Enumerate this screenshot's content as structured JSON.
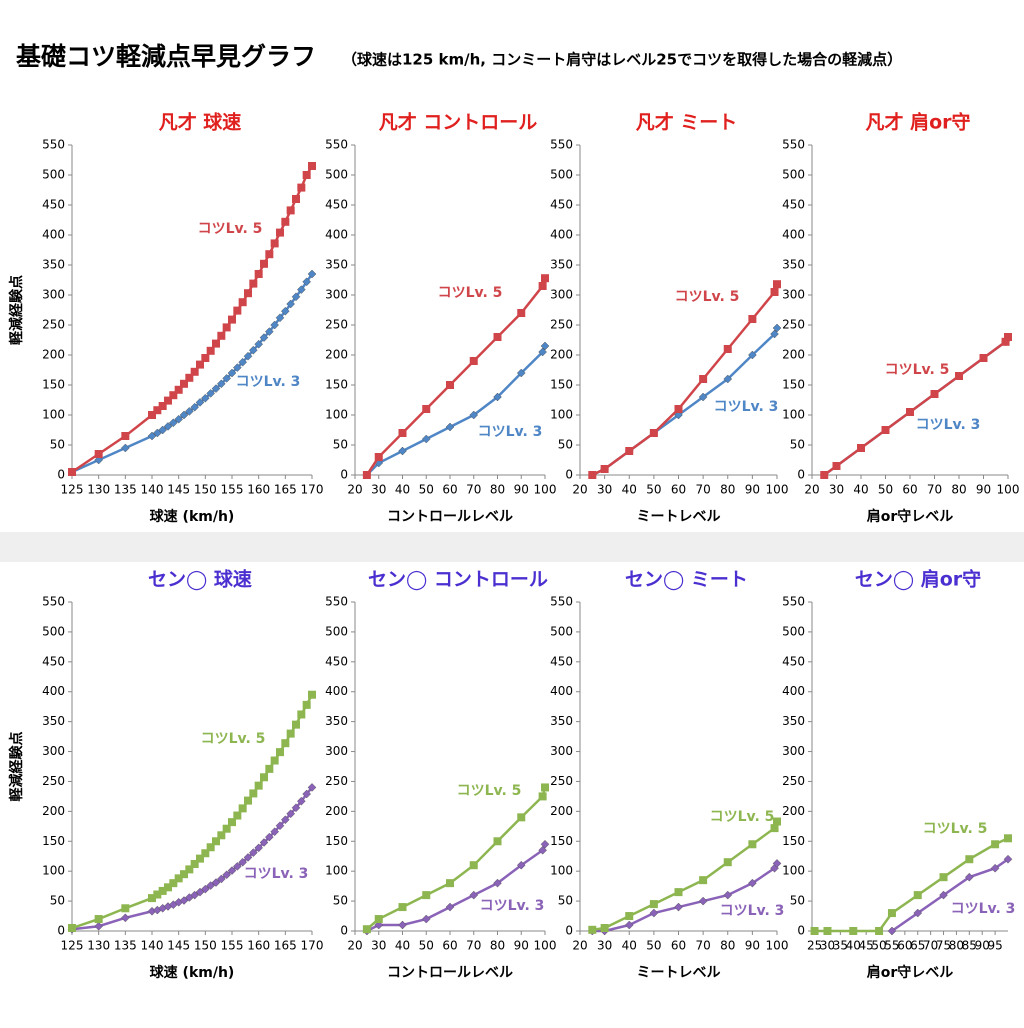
{
  "title": "基礎コツ軽減点早見グラフ",
  "subtitle": "（球速は125 km/h, コンミート肩守はレベル25でコツを取得した場合の軽減点）",
  "chart_data": [
    {
      "type": "line",
      "title": "凡才  球速",
      "title_color": "#e0201e",
      "x_label": "球速 (km/h)",
      "y_label": "軽減経験点",
      "x": [
        125,
        130,
        135,
        140,
        141,
        142,
        143,
        144,
        145,
        146,
        147,
        148,
        149,
        150,
        151,
        152,
        153,
        154,
        155,
        156,
        157,
        158,
        159,
        160,
        161,
        162,
        163,
        164,
        165,
        166,
        167,
        168,
        169,
        170
      ],
      "xlim": [
        125,
        170
      ],
      "xticks": [
        125,
        130,
        135,
        140,
        145,
        150,
        155,
        160,
        165,
        170
      ],
      "ylim": [
        0,
        550
      ],
      "yticks": [
        0,
        50,
        100,
        150,
        200,
        250,
        300,
        350,
        400,
        450,
        500,
        550
      ],
      "series": [
        {
          "name": "コツLv. 5",
          "color": "#d0454a",
          "marker": "square",
          "values": [
            5,
            35,
            65,
            100,
            108,
            115,
            124,
            133,
            142,
            152,
            162,
            172,
            184,
            195,
            207,
            219,
            232,
            246,
            259,
            274,
            288,
            303,
            319,
            335,
            352,
            368,
            386,
            404,
            422,
            441,
            460,
            479,
            500,
            515
          ]
        },
        {
          "name": "コツLv. 3",
          "color": "#4f86c6",
          "marker": "diamond",
          "values": [
            5,
            25,
            45,
            65,
            70,
            75,
            81,
            87,
            93,
            100,
            106,
            113,
            121,
            128,
            136,
            144,
            152,
            161,
            170,
            179,
            188,
            198,
            208,
            218,
            229,
            239,
            250,
            262,
            273,
            285,
            297,
            309,
            322,
            335
          ]
        }
      ]
    },
    {
      "type": "line",
      "title": "凡才  コントロール",
      "title_color": "#e0201e",
      "x_label": "コントロールレベル",
      "x": [
        25,
        30,
        40,
        50,
        60,
        70,
        80,
        90,
        99,
        100
      ],
      "xlim": [
        20,
        100
      ],
      "xticks": [
        20,
        30,
        40,
        50,
        60,
        70,
        80,
        90,
        100
      ],
      "ylim": [
        0,
        550
      ],
      "yticks": [
        0,
        50,
        100,
        150,
        200,
        250,
        300,
        350,
        400,
        450,
        500,
        550
      ],
      "series": [
        {
          "name": "コツLv. 5",
          "color": "#d0454a",
          "marker": "square",
          "values": [
            0,
            30,
            70,
            110,
            150,
            190,
            230,
            270,
            315,
            328
          ]
        },
        {
          "name": "コツLv. 3",
          "color": "#4f86c6",
          "marker": "diamond",
          "values": [
            0,
            20,
            40,
            60,
            80,
            100,
            130,
            170,
            205,
            215
          ]
        }
      ]
    },
    {
      "type": "line",
      "title": "凡才  ミート",
      "title_color": "#e0201e",
      "x_label": "ミートレベル",
      "x": [
        25,
        30,
        40,
        50,
        60,
        70,
        80,
        90,
        99,
        100
      ],
      "xlim": [
        20,
        100
      ],
      "xticks": [
        20,
        30,
        40,
        50,
        60,
        70,
        80,
        90,
        100
      ],
      "ylim": [
        0,
        550
      ],
      "yticks": [
        0,
        50,
        100,
        150,
        200,
        250,
        300,
        350,
        400,
        450,
        500,
        550
      ],
      "series": [
        {
          "name": "コツLv. 5",
          "color": "#d0454a",
          "marker": "square",
          "values": [
            0,
            10,
            40,
            70,
            110,
            160,
            210,
            260,
            305,
            318
          ]
        },
        {
          "name": "コツLv. 3",
          "color": "#4f86c6",
          "marker": "diamond",
          "values": [
            0,
            10,
            40,
            70,
            100,
            130,
            160,
            200,
            235,
            245
          ]
        }
      ]
    },
    {
      "type": "line",
      "title": "凡才  肩or守",
      "title_color": "#e0201e",
      "x_label": "肩or守レベル",
      "x": [
        25,
        30,
        40,
        50,
        60,
        70,
        80,
        90,
        99,
        100
      ],
      "xlim": [
        20,
        100
      ],
      "xticks": [
        20,
        30,
        40,
        50,
        60,
        70,
        80,
        90,
        100
      ],
      "ylim": [
        0,
        550
      ],
      "yticks": [
        0,
        50,
        100,
        150,
        200,
        250,
        300,
        350,
        400,
        450,
        500,
        550
      ],
      "series": [
        {
          "name": "コツLv. 5",
          "color": "#d0454a",
          "marker": "square",
          "values": [
            0,
            15,
            45,
            75,
            105,
            135,
            165,
            195,
            222,
            230
          ]
        },
        {
          "name": "コツLv. 3",
          "color": "#4f86c6",
          "marker": "diamond",
          "values": [
            0,
            15,
            45,
            75,
            105,
            135,
            165,
            195,
            222,
            230
          ]
        }
      ]
    },
    {
      "type": "line",
      "title": "セン◯ 球速",
      "title_color": "#4b2fd0",
      "x_label": "球速 (km/h)",
      "y_label": "軽減経験点",
      "x": [
        125,
        130,
        135,
        140,
        141,
        142,
        143,
        144,
        145,
        146,
        147,
        148,
        149,
        150,
        151,
        152,
        153,
        154,
        155,
        156,
        157,
        158,
        159,
        160,
        161,
        162,
        163,
        164,
        165,
        166,
        167,
        168,
        169,
        170
      ],
      "xlim": [
        125,
        170
      ],
      "xticks": [
        125,
        130,
        135,
        140,
        145,
        150,
        155,
        160,
        165,
        170
      ],
      "ylim": [
        0,
        550
      ],
      "yticks": [
        0,
        50,
        100,
        150,
        200,
        250,
        300,
        350,
        400,
        450,
        500,
        550
      ],
      "series": [
        {
          "name": "コツLv. 5",
          "color": "#8db650",
          "marker": "square",
          "values": [
            5,
            20,
            38,
            55,
            61,
            67,
            73,
            80,
            88,
            95,
            103,
            112,
            121,
            130,
            140,
            150,
            160,
            171,
            182,
            193,
            205,
            218,
            230,
            243,
            257,
            271,
            285,
            299,
            314,
            330,
            345,
            362,
            378,
            395
          ]
        },
        {
          "name": "コツLv. 3",
          "color": "#8a62b8",
          "marker": "diamond",
          "values": [
            3,
            8,
            22,
            33,
            35,
            38,
            41,
            44,
            48,
            51,
            56,
            60,
            65,
            70,
            76,
            81,
            87,
            94,
            101,
            108,
            115,
            123,
            131,
            139,
            148,
            157,
            166,
            176,
            186,
            196,
            206,
            217,
            229,
            240
          ]
        }
      ]
    },
    {
      "type": "line",
      "title": "セン◯ コントロール",
      "title_color": "#4b2fd0",
      "x_label": "コントロールレベル",
      "x": [
        25,
        30,
        40,
        50,
        60,
        70,
        80,
        90,
        99,
        100
      ],
      "xlim": [
        20,
        100
      ],
      "xticks": [
        20,
        30,
        40,
        50,
        60,
        70,
        80,
        90,
        100
      ],
      "ylim": [
        0,
        550
      ],
      "yticks": [
        0,
        50,
        100,
        150,
        200,
        250,
        300,
        350,
        400,
        450,
        500,
        550
      ],
      "series": [
        {
          "name": "コツLv. 5",
          "color": "#8db650",
          "marker": "square",
          "values": [
            3,
            20,
            40,
            60,
            80,
            110,
            150,
            190,
            225,
            240
          ]
        },
        {
          "name": "コツLv. 3",
          "color": "#8a62b8",
          "marker": "diamond",
          "values": [
            0,
            10,
            10,
            20,
            40,
            60,
            80,
            110,
            135,
            145
          ]
        }
      ]
    },
    {
      "type": "line",
      "title": "セン◯ ミート",
      "title_color": "#4b2fd0",
      "x_label": "ミートレベル",
      "x": [
        25,
        30,
        40,
        50,
        60,
        70,
        80,
        90,
        99,
        100
      ],
      "xlim": [
        20,
        100
      ],
      "xticks": [
        20,
        30,
        40,
        50,
        60,
        70,
        80,
        90,
        100
      ],
      "ylim": [
        0,
        550
      ],
      "yticks": [
        0,
        50,
        100,
        150,
        200,
        250,
        300,
        350,
        400,
        450,
        500,
        550
      ],
      "series": [
        {
          "name": "コツLv. 5",
          "color": "#8db650",
          "marker": "square",
          "values": [
            2,
            5,
            25,
            45,
            65,
            85,
            115,
            145,
            172,
            183
          ]
        },
        {
          "name": "コツLv. 3",
          "color": "#8a62b8",
          "marker": "diamond",
          "values": [
            0,
            0,
            10,
            30,
            40,
            50,
            60,
            80,
            105,
            113
          ]
        }
      ]
    },
    {
      "type": "line",
      "title": "セン◯ 肩or守",
      "title_color": "#4b2fd0",
      "x_label": "肩or守レベル",
      "x": [
        25,
        30,
        40,
        50,
        55,
        65,
        75,
        85,
        95,
        100
      ],
      "xlim": [
        24,
        100
      ],
      "xticks": [
        25,
        30,
        35,
        40,
        45,
        50,
        55,
        60,
        65,
        70,
        75,
        80,
        85,
        90,
        95
      ],
      "ylim": [
        0,
        550
      ],
      "yticks": [
        0,
        50,
        100,
        150,
        200,
        250,
        300,
        350,
        400,
        450,
        500,
        550
      ],
      "series": [
        {
          "name": "コツLv. 5",
          "color": "#8db650",
          "marker": "square",
          "values": [
            0,
            0,
            0,
            0,
            30,
            60,
            90,
            120,
            145,
            155
          ]
        },
        {
          "name": "コツLv. 3",
          "color": "#8a62b8",
          "marker": "diamond",
          "values": [
            null,
            null,
            null,
            null,
            0,
            30,
            60,
            90,
            105,
            120
          ]
        }
      ]
    }
  ]
}
